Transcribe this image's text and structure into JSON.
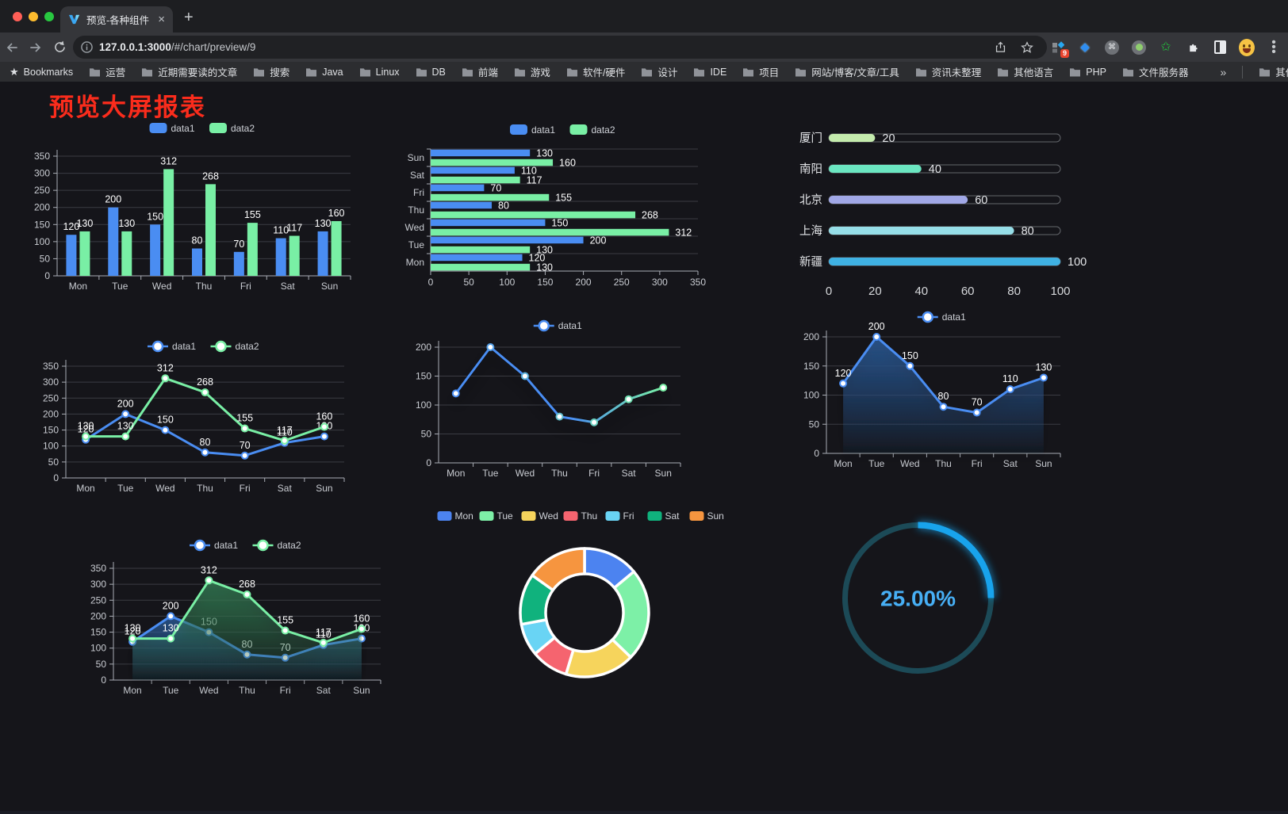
{
  "browser": {
    "traffic_lights": [
      "#ff5f57",
      "#febc2e",
      "#28c840"
    ],
    "tab": {
      "title": "预览-各种组件",
      "close_label": "×",
      "new_tab_label": "+"
    },
    "url_host": "127.0.0.1:3000",
    "url_path": "/#/chart/preview/9",
    "extension_badge": "9",
    "bookmarks_bar": {
      "label": "Bookmarks",
      "folders": [
        "运营",
        "近期需要读的文章",
        "搜索",
        "Java",
        "Linux",
        "DB",
        "前端",
        "游戏",
        "软件/硬件",
        "设计",
        "IDE",
        "项目",
        "网站/博客/文章/工具",
        "资讯未整理",
        "其他语言",
        "PHP",
        "文件服务器"
      ],
      "overflow": "»",
      "other_bookmarks": "其他书签"
    }
  },
  "page": {
    "title": "预览大屏报表",
    "title_color": "#fa2c1c"
  },
  "chart_data": [
    {
      "id": "bar1",
      "type": "bar",
      "categories": [
        "Mon",
        "Tue",
        "Wed",
        "Thu",
        "Fri",
        "Sat",
        "Sun"
      ],
      "series": [
        {
          "name": "data1",
          "color": "#4A8DF2",
          "values": [
            120,
            200,
            150,
            80,
            70,
            110,
            130
          ]
        },
        {
          "name": "data2",
          "color": "#79EFA5",
          "values": [
            130,
            130,
            312,
            268,
            155,
            117,
            160
          ]
        }
      ],
      "ylim": [
        0,
        350
      ],
      "yticks": [
        0,
        50,
        100,
        150,
        200,
        250,
        300,
        350
      ],
      "legend_position": "top",
      "grid": true
    },
    {
      "id": "hbar",
      "type": "bar",
      "horizontal": true,
      "categories": [
        "Mon",
        "Tue",
        "Wed",
        "Thu",
        "Fri",
        "Sat",
        "Sun"
      ],
      "series": [
        {
          "name": "data1",
          "color": "#4A8DF2",
          "values": [
            120,
            200,
            150,
            80,
            70,
            110,
            130
          ]
        },
        {
          "name": "data2",
          "color": "#79EFA5",
          "values": [
            130,
            130,
            312,
            268,
            155,
            117,
            160
          ]
        }
      ],
      "xlim": [
        0,
        350
      ],
      "xticks": [
        0,
        50,
        100,
        150,
        200,
        250,
        300,
        350
      ],
      "legend_position": "top",
      "grid": true
    },
    {
      "id": "progress",
      "type": "bar",
      "subtype": "progress-pills",
      "items": [
        {
          "label": "厦门",
          "value": 20,
          "color": "#C4EBAD"
        },
        {
          "label": "南阳",
          "value": 40,
          "color": "#6BE6C1"
        },
        {
          "label": "北京",
          "value": 60,
          "color": "#A0A7E6"
        },
        {
          "label": "上海",
          "value": 80,
          "color": "#96DEE8"
        },
        {
          "label": "新疆",
          "value": 100,
          "color": "#3FB1E3"
        }
      ],
      "xlim": [
        0,
        100
      ],
      "xticks": [
        0,
        20,
        40,
        60,
        80,
        100
      ]
    },
    {
      "id": "line2",
      "type": "line",
      "categories": [
        "Mon",
        "Tue",
        "Wed",
        "Thu",
        "Fri",
        "Sat",
        "Sun"
      ],
      "series": [
        {
          "name": "data1",
          "color": "#4A8DF2",
          "values": [
            120,
            200,
            150,
            80,
            70,
            110,
            130
          ],
          "labels": true
        },
        {
          "name": "data2",
          "color": "#79EFA5",
          "values": [
            130,
            130,
            312,
            268,
            155,
            117,
            160
          ],
          "labels": true
        }
      ],
      "ylim": [
        0,
        350
      ],
      "yticks": [
        0,
        50,
        100,
        150,
        200,
        250,
        300,
        350
      ],
      "legend_position": "top",
      "grid": true
    },
    {
      "id": "line1",
      "type": "line",
      "categories": [
        "Mon",
        "Tue",
        "Wed",
        "Thu",
        "Fri",
        "Sat",
        "Sun"
      ],
      "series": [
        {
          "name": "data1",
          "gradient": [
            "#4A8DF2",
            "#79EFA5"
          ],
          "values": [
            120,
            200,
            150,
            80,
            70,
            110,
            130
          ],
          "labels": false,
          "shadow": true
        }
      ],
      "ylim": [
        0,
        200
      ],
      "yticks": [
        0,
        50,
        100,
        150,
        200
      ],
      "legend_position": "top",
      "grid": true
    },
    {
      "id": "area1",
      "type": "area",
      "categories": [
        "Mon",
        "Tue",
        "Wed",
        "Thu",
        "Fri",
        "Sat",
        "Sun"
      ],
      "series": [
        {
          "name": "data1",
          "color": "#4A8DF2",
          "values": [
            120,
            200,
            150,
            80,
            70,
            110,
            130
          ],
          "labels": true,
          "area": [
            "rgba(40,84,140,0.95)",
            "rgba(40,84,140,0.03)"
          ],
          "shadow": true
        }
      ],
      "ylim": [
        0,
        200
      ],
      "yticks": [
        0,
        50,
        100,
        150,
        200
      ],
      "legend_position": "top",
      "grid": true
    },
    {
      "id": "area2",
      "type": "area",
      "categories": [
        "Mon",
        "Tue",
        "Wed",
        "Thu",
        "Fri",
        "Sat",
        "Sun"
      ],
      "series": [
        {
          "name": "data1",
          "color": "#4A8DF2",
          "values": [
            120,
            200,
            150,
            80,
            70,
            110,
            130
          ],
          "labels": true,
          "area": [
            "rgba(43,93,155,0.8)",
            "rgba(43,93,155,0.02)"
          ],
          "shadow": true
        },
        {
          "name": "data2",
          "color": "#79EFA5",
          "values": [
            130,
            130,
            312,
            268,
            155,
            117,
            160
          ],
          "labels": true,
          "area": [
            "rgba(52,125,84,0.8)",
            "rgba(52,125,84,0.02)"
          ],
          "shadow": true
        }
      ],
      "ylim": [
        0,
        350
      ],
      "yticks": [
        0,
        50,
        100,
        150,
        200,
        250,
        300,
        350
      ],
      "legend_position": "top",
      "grid": true
    },
    {
      "id": "donut",
      "type": "pie",
      "inner_radius": 49,
      "outer_radius": 81,
      "labels": [
        "Mon",
        "Tue",
        "Wed",
        "Thu",
        "Fri",
        "Sat",
        "Sun"
      ],
      "values": [
        120,
        200,
        150,
        80,
        70,
        110,
        130
      ],
      "colors": [
        "#4C83F0",
        "#7DF0A7",
        "#F6D45C",
        "#F5646F",
        "#69D4F4",
        "#10B27D",
        "#F6953F"
      ],
      "border_color": "#ffffff",
      "legend_position": "top"
    },
    {
      "id": "gauge",
      "type": "gauge",
      "value": 25,
      "max": 100,
      "display": "25.00%",
      "track_color": "#1C4A57",
      "arc_color": "#18A3EC",
      "text_color": "#47AFF5"
    }
  ]
}
